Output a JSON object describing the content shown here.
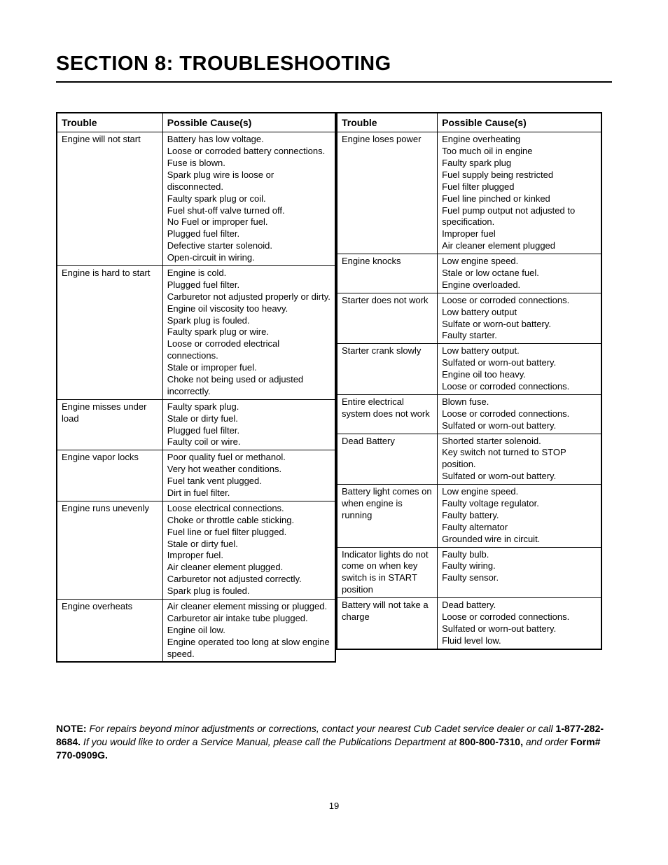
{
  "title": "SECTION 8: TROUBLESHOOTING",
  "headers": {
    "trouble": "Trouble",
    "cause": "Possible Cause(s)"
  },
  "left_table": [
    {
      "trouble": "Engine will not start",
      "causes": [
        "Battery has low voltage.",
        "Loose or corroded battery connections.",
        "Fuse is blown.",
        "Spark plug wire is loose or disconnected.",
        "Faulty spark plug or coil.",
        "Fuel shut-off valve turned off.",
        "No Fuel or improper fuel.",
        "Plugged fuel filter.",
        "Defective starter solenoid.",
        "Open-circuit in wiring."
      ]
    },
    {
      "trouble": "Engine is hard to start",
      "causes": [
        "Engine is cold.",
        "Plugged fuel filter.",
        "Carburetor not adjusted properly or dirty.",
        "Engine oil viscosity too heavy.",
        "Spark plug is fouled.",
        "Faulty spark plug or wire.",
        "Loose or corroded electrical connections.",
        "Stale or improper fuel.",
        "Choke not being used or adjusted incorrectly."
      ]
    },
    {
      "trouble": "Engine misses under load",
      "causes": [
        "Faulty spark plug.",
        "Stale or dirty fuel.",
        "Plugged fuel filter.",
        "Faulty coil or wire."
      ]
    },
    {
      "trouble": "Engine vapor locks",
      "causes": [
        "Poor quality fuel or methanol.",
        "Very hot weather conditions.",
        "Fuel tank vent plugged.",
        "Dirt in fuel filter."
      ]
    },
    {
      "trouble": "Engine runs unevenly",
      "causes": [
        "Loose electrical connections.",
        "Choke or throttle cable sticking.",
        "Fuel line or fuel filter plugged.",
        "Stale or dirty fuel.",
        "Improper fuel.",
        "Air cleaner element plugged.",
        "Carburetor not adjusted correctly.",
        "Spark plug is fouled."
      ]
    },
    {
      "trouble": "Engine overheats",
      "causes": [
        "Air cleaner element missing or plugged.",
        "Carburetor air intake tube plugged.",
        "Engine oil low.",
        "Engine operated too long at slow engine speed."
      ]
    }
  ],
  "right_table": [
    {
      "trouble": "Engine loses power",
      "causes": [
        "Engine overheating",
        "Too much oil in engine",
        "Faulty spark plug",
        "Fuel supply being restricted",
        "Fuel filter plugged",
        "Fuel line pinched or kinked",
        "Fuel pump output not adjusted to specification.",
        "Improper fuel",
        "Air cleaner element plugged"
      ]
    },
    {
      "trouble": "Engine knocks",
      "causes": [
        "Low engine speed.",
        "Stale or low octane fuel.",
        "Engine overloaded."
      ]
    },
    {
      "trouble": "Starter does not work",
      "causes": [
        "Loose or corroded connections.",
        "Low battery output",
        "Sulfate or worn-out battery.",
        "Faulty starter."
      ]
    },
    {
      "trouble": "Starter crank slowly",
      "causes": [
        "Low battery output.",
        "Sulfated or worn-out battery.",
        "Engine oil too heavy.",
        "Loose or corroded connections."
      ]
    },
    {
      "trouble": "Entire electrical system does not work",
      "causes": [
        "Blown fuse.",
        "Loose or corroded connections.",
        "Sulfated or worn-out battery."
      ]
    },
    {
      "trouble": "Dead Battery",
      "causes": [
        "Shorted starter solenoid.",
        "Key switch not turned to STOP position.",
        "Sulfated or worn-out battery."
      ]
    },
    {
      "trouble": "Battery light comes on when engine is running",
      "causes": [
        "Low engine speed.",
        "Faulty voltage regulator.",
        "Faulty battery.",
        "Faulty alternator",
        "Grounded wire in circuit."
      ]
    },
    {
      "trouble": "Indicator lights do not come on when key switch is in START position",
      "causes": [
        "Faulty bulb.",
        "Faulty wiring.",
        "Faulty sensor."
      ]
    },
    {
      "trouble": "Battery will not take a charge",
      "causes": [
        "Dead battery.",
        "Loose or corroded connections.",
        "Sulfated or worn-out battery.",
        "Fluid level low."
      ]
    }
  ],
  "note": {
    "label": "NOTE:",
    "text1": " For repairs beyond minor adjustments or corrections, contact your nearest Cub Cadet service dealer or call ",
    "phone1": "1-877-282-8684.",
    "text2": " If you would like to order a Service Manual, please call the Publications Department at ",
    "phone2": "800-800-7310,",
    "text3": " and order ",
    "form": "Form# 770-0909G."
  },
  "page_number": "19"
}
